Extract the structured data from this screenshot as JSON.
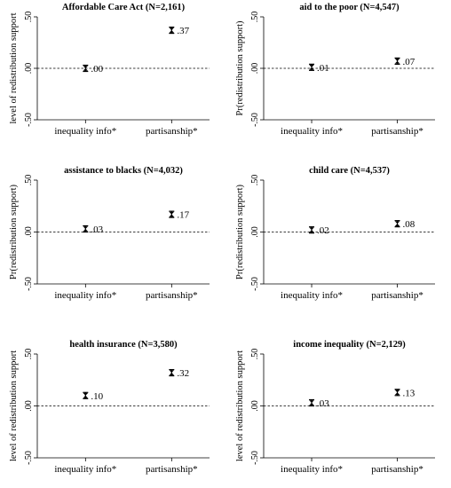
{
  "chart_data": [
    {
      "type": "scatter",
      "title": "Affordable Care Act (N=2,161)",
      "ylabel": "level of redistribution support",
      "categories": [
        "inequality info*",
        "partisanship*"
      ],
      "values": [
        0.0,
        0.37
      ],
      "data_labels": [
        ".00",
        ".37"
      ],
      "ylim": [
        -0.5,
        0.5
      ],
      "yticks": [
        ".50",
        ".00",
        "-.50"
      ],
      "reference_line": 0
    },
    {
      "type": "scatter",
      "title": "aid to the poor (N=4,547)",
      "ylabel": "Pr(redistribution support)",
      "categories": [
        "inequality info*",
        "partisanship*"
      ],
      "values": [
        0.01,
        0.07
      ],
      "data_labels": [
        ".01",
        ".07"
      ],
      "ylim": [
        -0.5,
        0.5
      ],
      "yticks": [
        ".50",
        ".00",
        "-.50"
      ],
      "reference_line": 0
    },
    {
      "type": "scatter",
      "title": "assistance to blacks (N=4,032)",
      "ylabel": "Pr(redistribution support)",
      "categories": [
        "inequality info*",
        "partisanship*"
      ],
      "values": [
        0.03,
        0.17
      ],
      "data_labels": [
        ".03",
        ".17"
      ],
      "ylim": [
        -0.5,
        0.5
      ],
      "yticks": [
        ".50",
        ".00",
        "-.50"
      ],
      "reference_line": 0
    },
    {
      "type": "scatter",
      "title": "child care (N=4,537)",
      "ylabel": "Pr(redistribution support)",
      "categories": [
        "inequality info*",
        "partisanship*"
      ],
      "values": [
        0.02,
        0.08
      ],
      "data_labels": [
        ".02",
        ".08"
      ],
      "ylim": [
        -0.5,
        0.5
      ],
      "yticks": [
        ".50",
        ".00",
        "-.50"
      ],
      "reference_line": 0
    },
    {
      "type": "scatter",
      "title": "health insurance (N=3,580)",
      "ylabel": "level of redistribution support",
      "categories": [
        "inequality info*",
        "partisanship*"
      ],
      "values": [
        0.1,
        0.32
      ],
      "data_labels": [
        ".10",
        ".32"
      ],
      "ylim": [
        -0.5,
        0.5
      ],
      "yticks": [
        ".50",
        ".00",
        "-.50"
      ],
      "reference_line": 0
    },
    {
      "type": "scatter",
      "title": "income inequality (N=2,129)",
      "ylabel": "level of redistribution support",
      "categories": [
        "inequality info*",
        "partisanship*"
      ],
      "values": [
        0.03,
        0.13
      ],
      "data_labels": [
        ".03",
        ".13"
      ],
      "ylim": [
        -0.5,
        0.5
      ],
      "yticks": [
        ".50",
        ".00",
        "-.50"
      ],
      "reference_line": 0
    }
  ]
}
